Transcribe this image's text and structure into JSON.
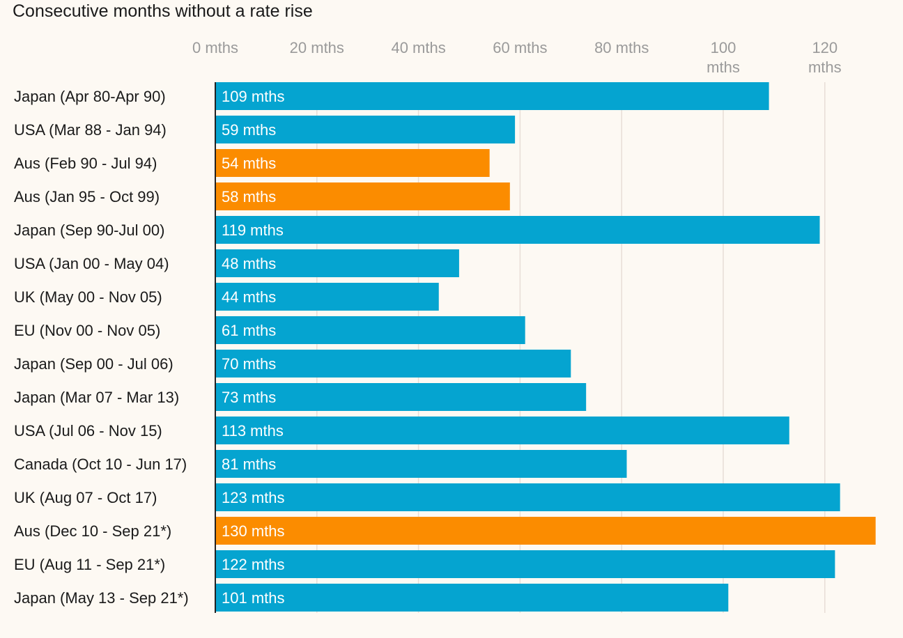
{
  "chart_data": {
    "type": "bar",
    "orientation": "horizontal",
    "title": "Consecutive months without a rate rise",
    "xlabel": "",
    "ylabel": "",
    "xlim": [
      0,
      130
    ],
    "grid": true,
    "ticks": [
      {
        "value": 0,
        "lines": [
          "0 mths"
        ]
      },
      {
        "value": 20,
        "lines": [
          "20 mths"
        ]
      },
      {
        "value": 40,
        "lines": [
          "40 mths"
        ]
      },
      {
        "value": 60,
        "lines": [
          "60 mths"
        ]
      },
      {
        "value": 80,
        "lines": [
          "80 mths"
        ]
      },
      {
        "value": 100,
        "lines": [
          "100",
          "mths"
        ]
      },
      {
        "value": 120,
        "lines": [
          "120",
          "mths"
        ]
      }
    ],
    "colors": {
      "default": "#05a4d0",
      "highlight": "#fb8c00"
    },
    "categories": [
      "Japan (Apr 80-Apr 90)",
      "USA (Mar 88 - Jan 94)",
      "Aus (Feb 90 - Jul 94)",
      "Aus (Jan 95 - Oct 99)",
      "Japan (Sep 90-Jul 00)",
      "USA (Jan 00 - May 04)",
      "UK (May 00 - Nov 05)",
      "EU (Nov 00 - Nov 05)",
      "Japan (Sep 00 - Jul 06)",
      "Japan (Mar 07 - Mar 13)",
      "USA (Jul 06 - Nov 15)",
      "Canada (Oct 10 - Jun 17)",
      "UK (Aug 07 - Oct 17)",
      "Aus (Dec 10 - Sep 21*)",
      "EU (Aug 11 - Sep 21*)",
      "Japan (May 13 - Sep 21*)"
    ],
    "values": [
      109,
      59,
      54,
      58,
      119,
      48,
      44,
      61,
      70,
      73,
      113,
      81,
      123,
      130,
      122,
      101
    ],
    "value_labels": [
      "109 mths",
      "59 mths",
      "54 mths",
      "58 mths",
      "119 mths",
      "48 mths",
      "44 mths",
      "61 mths",
      "70 mths",
      "73 mths",
      "113 mths",
      "81 mths",
      "123 mths",
      "130 mths",
      "122 mths",
      "101 mths"
    ],
    "highlight": [
      false,
      false,
      true,
      true,
      false,
      false,
      false,
      false,
      false,
      false,
      false,
      false,
      false,
      true,
      false,
      false
    ]
  }
}
